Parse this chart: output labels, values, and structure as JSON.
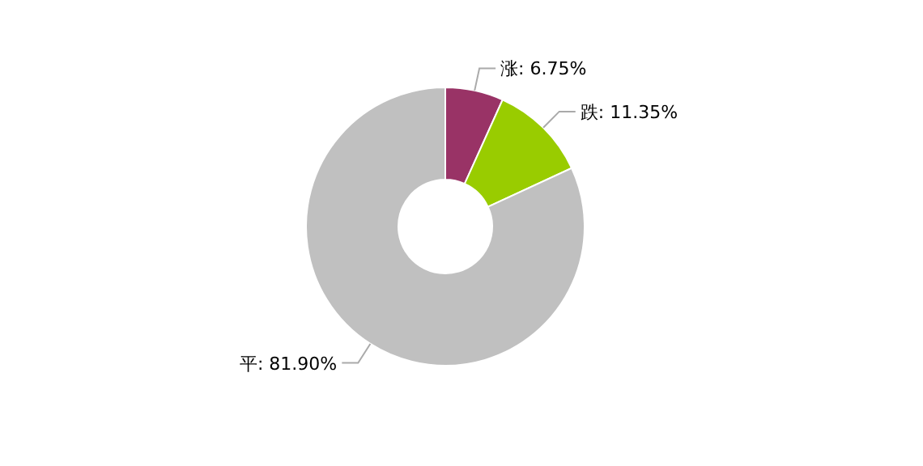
{
  "chart_data": {
    "type": "donut",
    "categories": [
      "涨",
      "跌",
      "平"
    ],
    "values": [
      6.75,
      11.35,
      81.9
    ],
    "colors": [
      "#993366",
      "#99cc00",
      "#c0c0c0"
    ],
    "value_labels": [
      ": 6.75%",
      ": 11.35%",
      ": 81.90%"
    ]
  }
}
